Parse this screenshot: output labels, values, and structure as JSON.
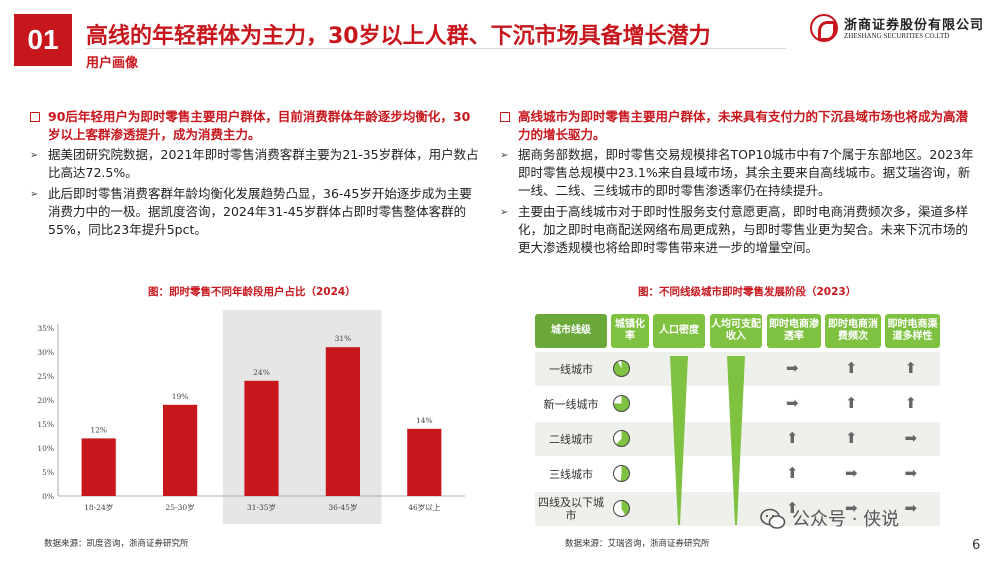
{
  "header": {
    "number": "01",
    "title": "高线的年轻群体为主力，30岁以上人群、下沉市场具备增长潜力",
    "section": "用户画像",
    "logo_cn": "浙商证券股份有限公司",
    "logo_en": "ZHESHANG SECURITIES CO.LTD"
  },
  "left": {
    "headline": "90后年轻用户为即时零售主要用户群体，目前消费群体年龄逐步均衡化，30岁以上客群渗透提升，成为消费主力。",
    "bullets": [
      "据美团研究院数据，2021年即时零售消费客群主要为21-35岁群体，用户数占比高达72.5%。",
      "此后即时零售消费客群年龄均衡化发展趋势凸显，36-45岁开始逐步成为主要消费力中的一极。据凯度咨询，2024年31-45岁群体占即时零售整体客群的55%，同比23年提升5pct。"
    ],
    "figure_title": "图：即时零售不同年龄段用户占比（2024）",
    "source": "数据来源：凯度咨询，浙商证券研究所"
  },
  "right": {
    "headline": "高线城市为即时零售主要用户群体，未来具有支付力的下沉县域市场也将成为高潜力的增长驱力。",
    "bullets": [
      "据商务部数据，即时零售交易规模排名TOP10城市中有7个属于东部地区。2023年即时零售总规模中23.1%来自县域市场，其余主要来自高线城市。据艾瑞咨询，新一线、二线、三线城市的即时零售渗透率仍在持续提升。",
      "主要由于高线城市对于即时性服务支付意愿更高，即时电商消费频次多，渠道多样化，加之即时电商配送网络布局更成熟，与即时零售业更为契合。未来下沉市场的更大渗透规模也将给即时零售带来进一步的增量空间。"
    ],
    "figure_title": "图：不同线级城市即时零售发展阶段（2023）",
    "source": "数据来源：艾瑞咨询，浙商证券研究所",
    "table": {
      "headers": [
        "城市线级",
        "城镇化率",
        "人口密度",
        "人均可支配收入",
        "即时电商渗透率",
        "即时电商消费频次",
        "即时电商渠道多样性"
      ],
      "rows": [
        {
          "label": "一线城市",
          "urbanization": 0.92,
          "penetration": "right",
          "frequency": "up",
          "diversity": "up"
        },
        {
          "label": "新一线城市",
          "urbanization": 0.75,
          "penetration": "right",
          "frequency": "up",
          "diversity": "up"
        },
        {
          "label": "二线城市",
          "urbanization": 0.62,
          "penetration": "up",
          "frequency": "up",
          "diversity": "right"
        },
        {
          "label": "三线城市",
          "urbanization": 0.52,
          "penetration": "up",
          "frequency": "right",
          "diversity": "right"
        },
        {
          "label": "四线及以下城市",
          "urbanization": 0.42,
          "penetration": "up",
          "frequency": "right",
          "diversity": "right"
        }
      ]
    }
  },
  "chart_data": {
    "type": "bar",
    "title": "图：即时零售不同年龄段用户占比（2024）",
    "categories": [
      "18-24岁",
      "25-30岁",
      "31-35岁",
      "36-45岁",
      "46岁以上"
    ],
    "values": [
      12,
      19,
      24,
      31,
      14
    ],
    "value_labels": [
      "12%",
      "19%",
      "24%",
      "31%",
      "14%"
    ],
    "highlight_categories": [
      "31-35岁",
      "36-45岁"
    ],
    "ylim": [
      0,
      35
    ],
    "yticks": [
      "0%",
      "5%",
      "10%",
      "15%",
      "20%",
      "25%",
      "30%",
      "35%"
    ],
    "grid": false,
    "bar_color": "#c8161d",
    "highlight_color": "#e6e6e6"
  },
  "footer": {
    "watermark": "公众号 · 侠说",
    "page": "6"
  },
  "colors": {
    "accent": "#c8161d",
    "table_green": "#7fc241"
  }
}
